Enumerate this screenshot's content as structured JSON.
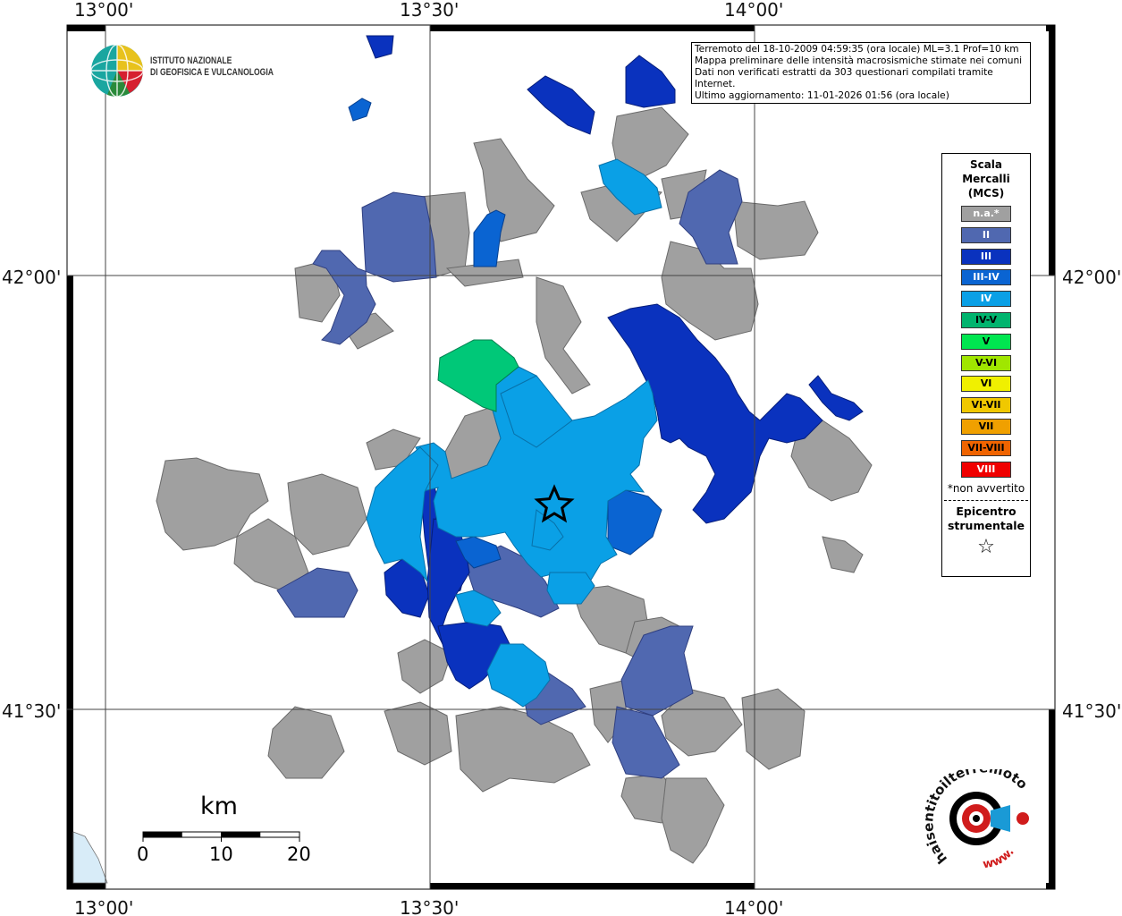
{
  "map": {
    "lon_labels": [
      "13°00'",
      "13°30'",
      "14°00'"
    ],
    "lat_labels": [
      "42°00'",
      "41°30'"
    ],
    "epicenter_symbol": "star-icon"
  },
  "info": {
    "line1": "Terremoto del 18-10-2009 04:59:35 (ora locale) ML=3.1 Prof=10 km",
    "line2": "Mappa preliminare delle intensità macrosismiche stimate nei comuni",
    "line3": "Dati non verificati estratti da 303 questionari compilati tramite Internet.",
    "line4": "Ultimo aggiornamento: 11-01-2026 01:56 (ora locale)"
  },
  "logo": {
    "ingv_line1": "ISTITUTO NAZIONALE",
    "ingv_line2": "DI GEOFISICA E VULCANOLOGIA",
    "hst_text": "haisentitoilterremoto.it",
    "hst_www": "www."
  },
  "legend": {
    "title1": "Scala",
    "title2": "Mercalli",
    "title3": "(MCS)",
    "classes": [
      {
        "label": "n.a.*",
        "color": "#a0a0a0"
      },
      {
        "label": "II",
        "color": "#5068b0"
      },
      {
        "label": "III",
        "color": "#0a32be"
      },
      {
        "label": "III-IV",
        "color": "#0a64d2"
      },
      {
        "label": "IV",
        "color": "#0aa0e6"
      },
      {
        "label": "IV-V",
        "color": "#00b46e"
      },
      {
        "label": "V",
        "color": "#00e650"
      },
      {
        "label": "V-VI",
        "color": "#a0e600"
      },
      {
        "label": "VI",
        "color": "#f0f000"
      },
      {
        "label": "VI-VII",
        "color": "#f0c800"
      },
      {
        "label": "VII",
        "color": "#f0a000"
      },
      {
        "label": "VII-VIII",
        "color": "#f06400"
      },
      {
        "label": "VIII",
        "color": "#f00000"
      }
    ],
    "note": "*non avvertito",
    "epicenter_line1": "Epicentro",
    "epicenter_line2": "strumentale",
    "epicenter_icon": "☆"
  },
  "scalebar": {
    "unit": "km",
    "ticks": [
      "0",
      "10",
      "20"
    ]
  }
}
